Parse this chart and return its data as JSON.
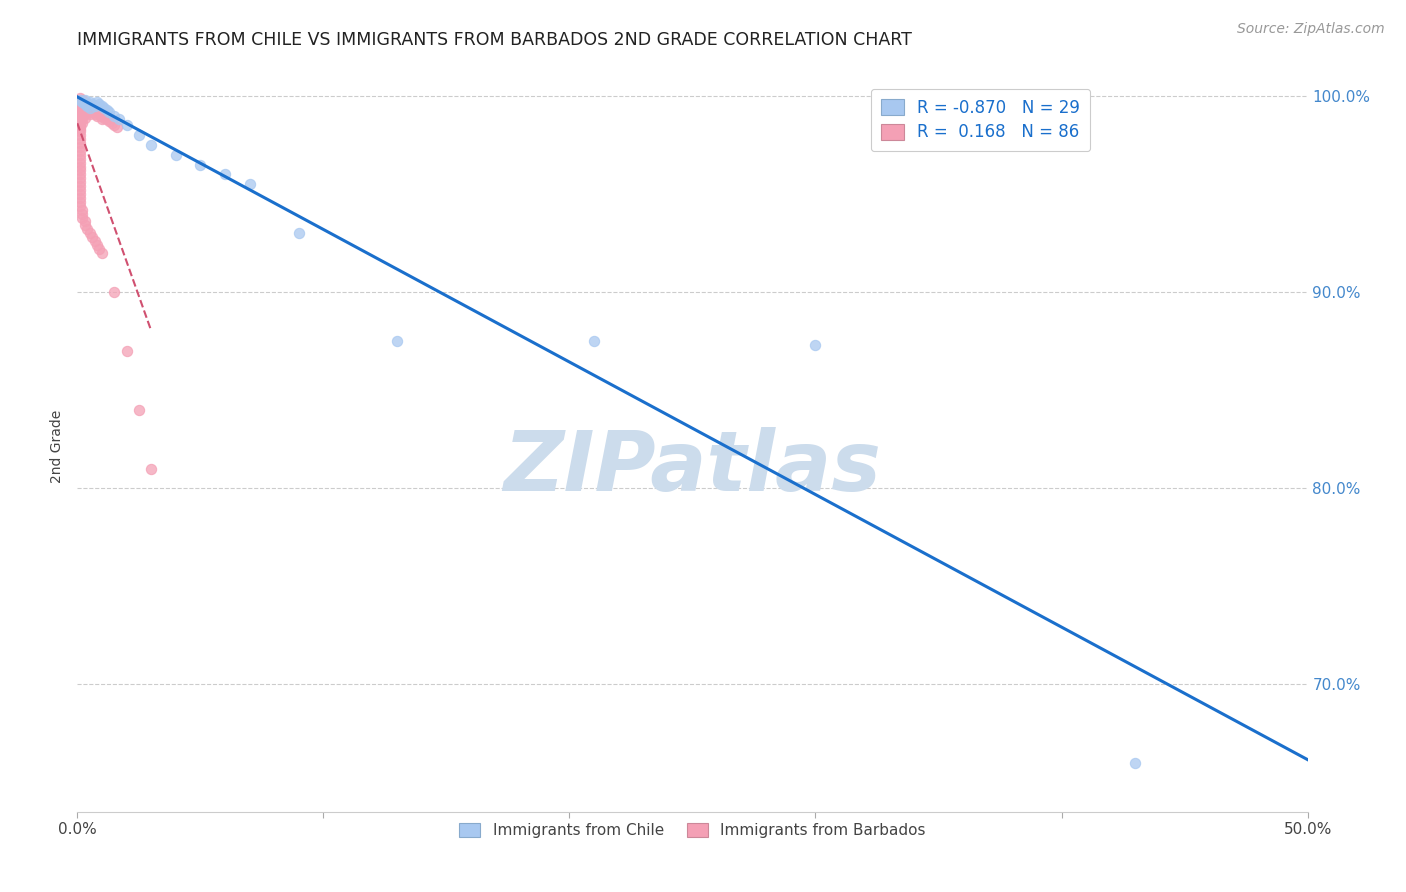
{
  "title": "IMMIGRANTS FROM CHILE VS IMMIGRANTS FROM BARBADOS 2ND GRADE CORRELATION CHART",
  "source": "Source: ZipAtlas.com",
  "ylabel": "2nd Grade",
  "xlim": [
    0.0,
    0.5
  ],
  "ylim": [
    0.635,
    1.008
  ],
  "xticks": [
    0.0,
    0.1,
    0.2,
    0.3,
    0.4,
    0.5
  ],
  "xticklabels": [
    "0.0%",
    "",
    "",
    "",
    "",
    "50.0%"
  ],
  "yticks": [
    0.7,
    0.8,
    0.9,
    1.0
  ],
  "right_yticklabels": [
    "70.0%",
    "80.0%",
    "90.0%",
    "100.0%"
  ],
  "legend_r_chile": "-0.870",
  "legend_n_chile": "29",
  "legend_r_barbados": " 0.168",
  "legend_n_barbados": "86",
  "chile_color": "#a8c8f0",
  "barbados_color": "#f4a0b5",
  "chile_line_color": "#1a6fcc",
  "barbados_line_color": "#d05070",
  "watermark": "ZIPatlas",
  "watermark_color": "#ccdcec",
  "chile_scatter_x": [
    0.001,
    0.002,
    0.003,
    0.003,
    0.004,
    0.005,
    0.005,
    0.006,
    0.007,
    0.008,
    0.009,
    0.01,
    0.011,
    0.012,
    0.013,
    0.015,
    0.017,
    0.02,
    0.025,
    0.03,
    0.04,
    0.05,
    0.06,
    0.07,
    0.09,
    0.13,
    0.21,
    0.3,
    0.43
  ],
  "chile_scatter_y": [
    0.998,
    0.997,
    0.996,
    0.998,
    0.995,
    0.997,
    0.994,
    0.996,
    0.995,
    0.997,
    0.996,
    0.995,
    0.994,
    0.993,
    0.992,
    0.99,
    0.988,
    0.985,
    0.98,
    0.975,
    0.97,
    0.965,
    0.96,
    0.955,
    0.93,
    0.875,
    0.875,
    0.873,
    0.66
  ],
  "barbados_scatter_x": [
    0.001,
    0.001,
    0.001,
    0.001,
    0.001,
    0.001,
    0.001,
    0.001,
    0.001,
    0.001,
    0.001,
    0.001,
    0.001,
    0.001,
    0.001,
    0.001,
    0.001,
    0.002,
    0.002,
    0.002,
    0.002,
    0.002,
    0.002,
    0.002,
    0.003,
    0.003,
    0.003,
    0.003,
    0.003,
    0.004,
    0.004,
    0.004,
    0.005,
    0.005,
    0.005,
    0.006,
    0.006,
    0.007,
    0.007,
    0.008,
    0.008,
    0.009,
    0.01,
    0.01,
    0.011,
    0.012,
    0.013,
    0.014,
    0.015,
    0.016,
    0.001,
    0.001,
    0.001,
    0.001,
    0.001,
    0.001,
    0.001,
    0.001,
    0.001,
    0.001,
    0.001,
    0.001,
    0.001,
    0.001,
    0.001,
    0.001,
    0.001,
    0.001,
    0.001,
    0.001,
    0.002,
    0.002,
    0.002,
    0.003,
    0.003,
    0.004,
    0.005,
    0.006,
    0.007,
    0.008,
    0.009,
    0.01,
    0.015,
    0.02,
    0.025,
    0.03
  ],
  "barbados_scatter_y": [
    0.999,
    0.998,
    0.997,
    0.996,
    0.995,
    0.994,
    0.993,
    0.992,
    0.991,
    0.99,
    0.989,
    0.988,
    0.987,
    0.986,
    0.985,
    0.984,
    0.983,
    0.998,
    0.996,
    0.994,
    0.992,
    0.99,
    0.988,
    0.986,
    0.997,
    0.995,
    0.993,
    0.991,
    0.989,
    0.996,
    0.994,
    0.992,
    0.995,
    0.993,
    0.991,
    0.994,
    0.992,
    0.993,
    0.991,
    0.992,
    0.99,
    0.991,
    0.99,
    0.988,
    0.989,
    0.988,
    0.987,
    0.986,
    0.985,
    0.984,
    0.982,
    0.98,
    0.978,
    0.976,
    0.974,
    0.972,
    0.97,
    0.968,
    0.966,
    0.964,
    0.962,
    0.96,
    0.958,
    0.956,
    0.954,
    0.952,
    0.95,
    0.948,
    0.946,
    0.944,
    0.942,
    0.94,
    0.938,
    0.936,
    0.934,
    0.932,
    0.93,
    0.928,
    0.926,
    0.924,
    0.922,
    0.92,
    0.9,
    0.87,
    0.84,
    0.81
  ]
}
